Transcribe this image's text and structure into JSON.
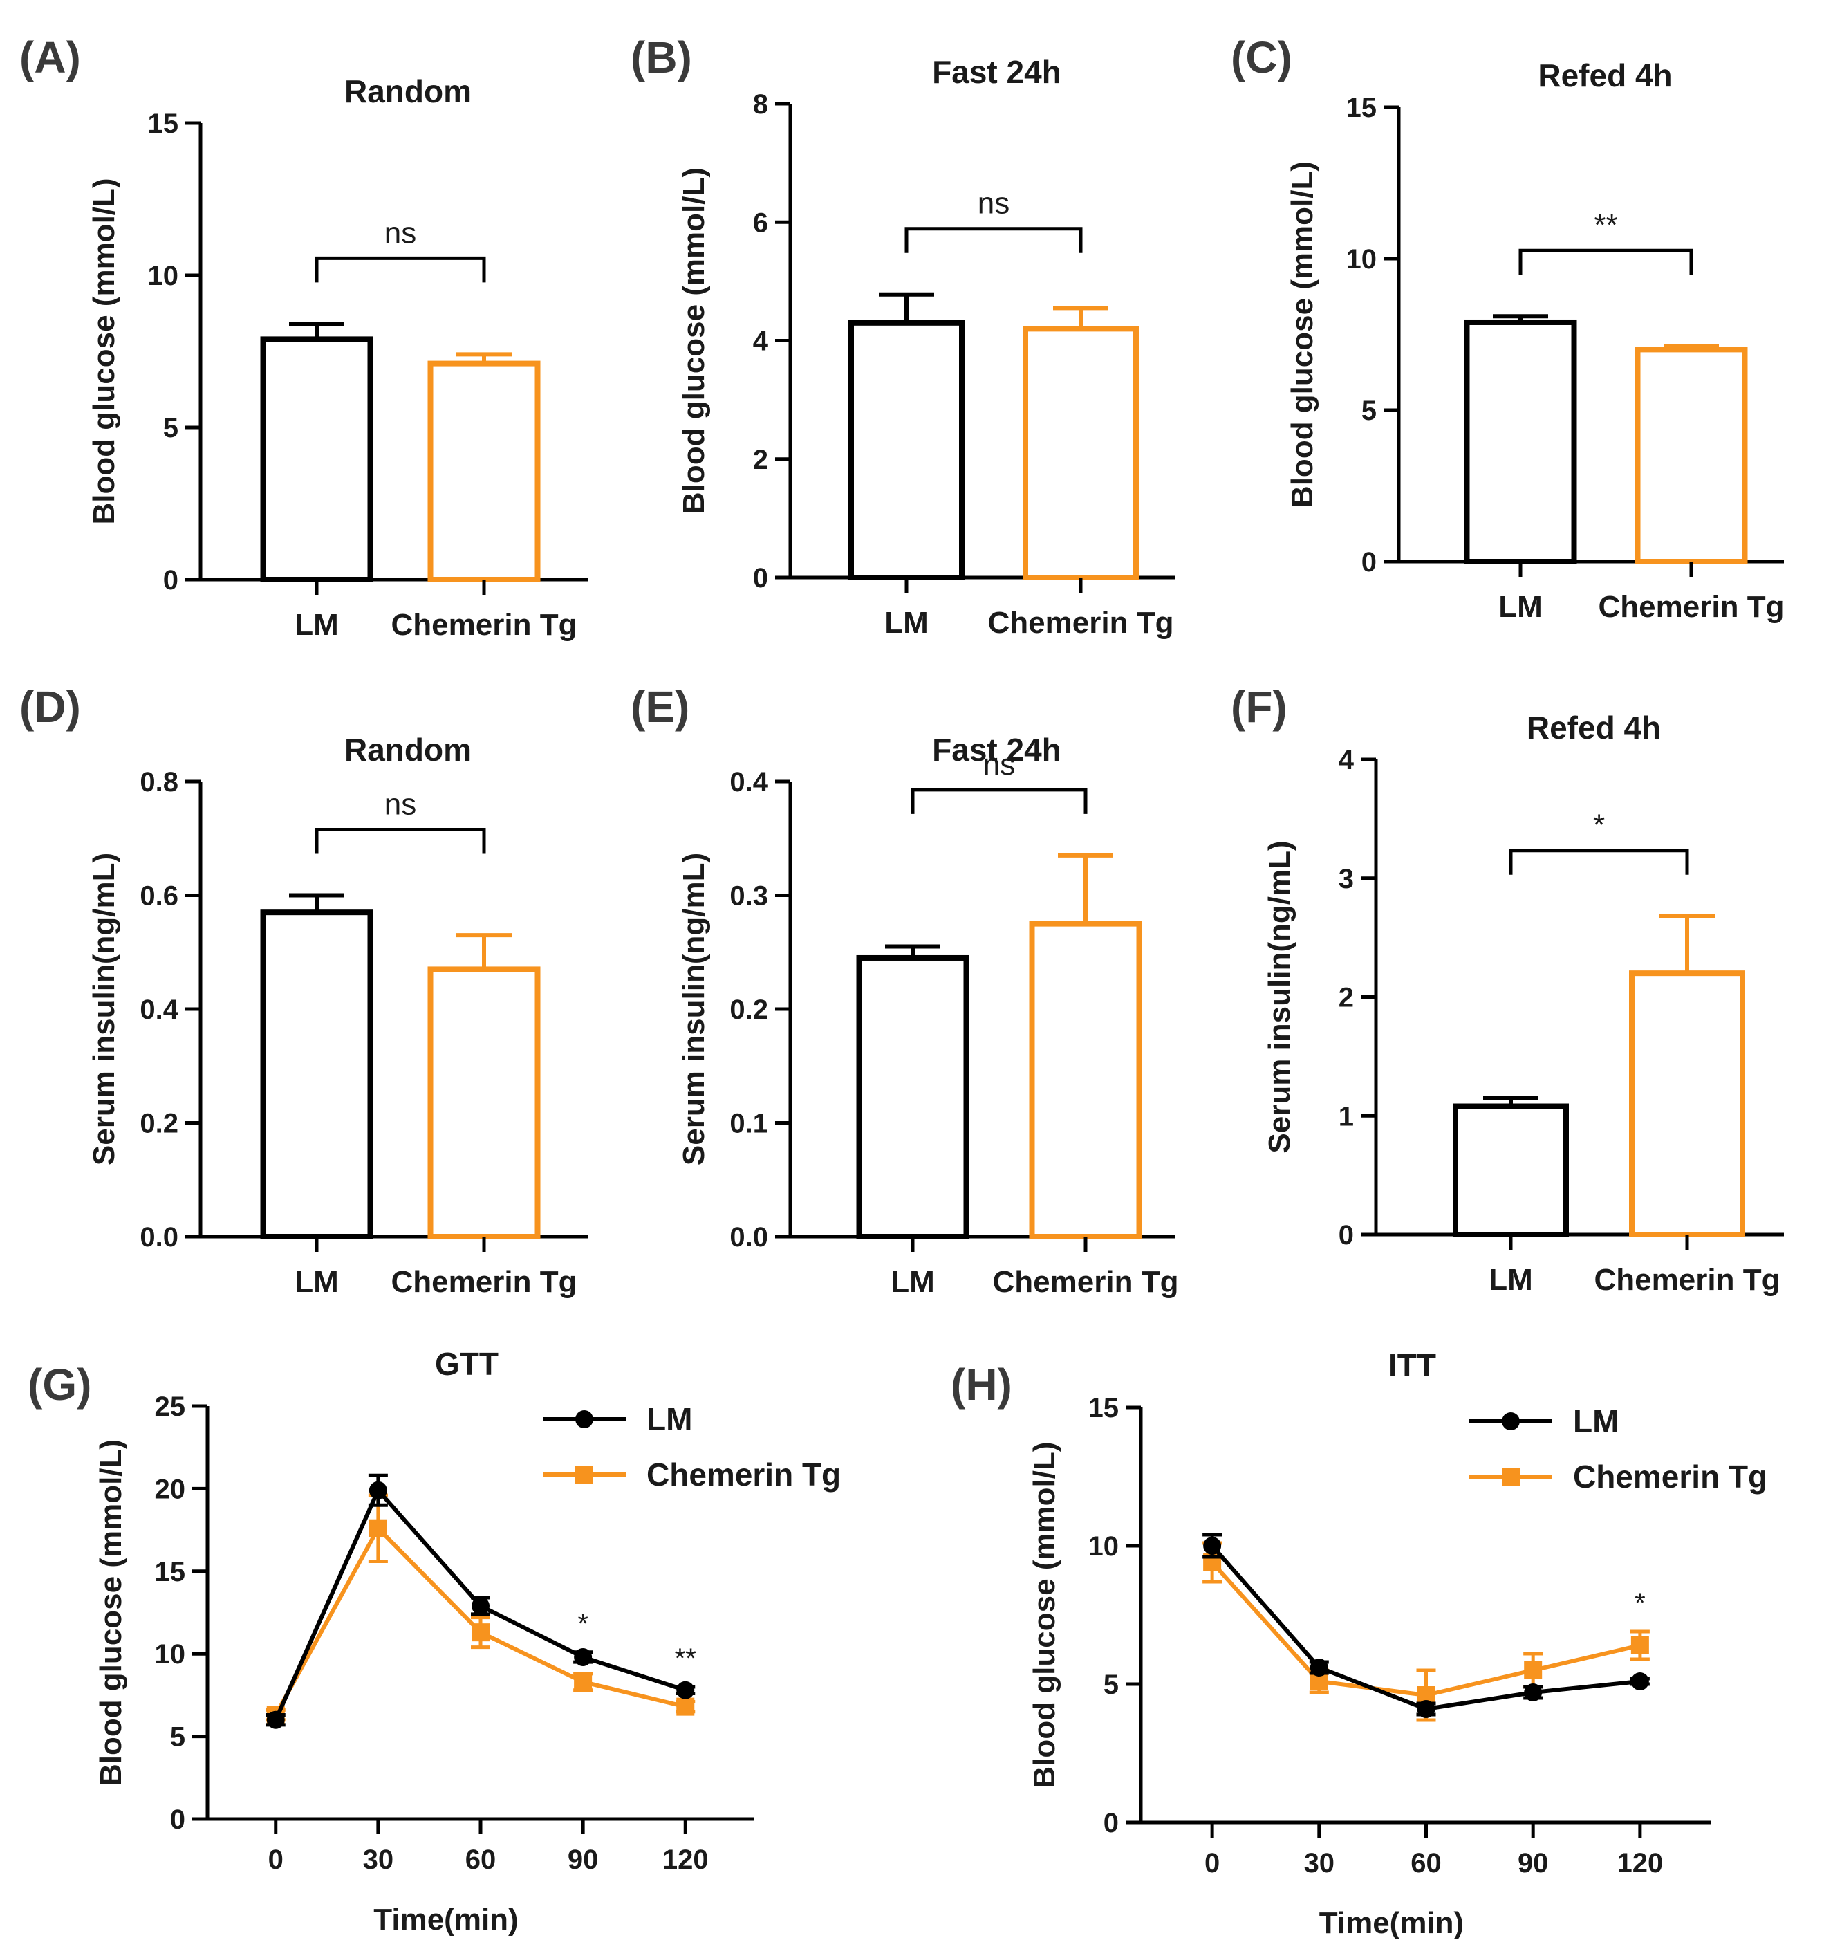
{
  "panel_letters": [
    "(A)",
    "(B)",
    "(C)",
    "(D)",
    "(E)",
    "(F)",
    "(G)",
    "(H)"
  ],
  "colors": {
    "lm": "#000000",
    "tg": "#f7931e",
    "text": "#1a1a1a"
  },
  "chart_data": [
    {
      "id": "A",
      "type": "bar",
      "title": "Random",
      "ylabel": "Blood glucose (mmol/L)",
      "ylim": [
        0,
        15
      ],
      "yticks": [
        0,
        5,
        10,
        15
      ],
      "ytick_labels": [
        "0",
        "5",
        "10",
        "15"
      ],
      "categories": [
        "LM",
        "Chemerin Tg"
      ],
      "values": [
        7.9,
        7.1
      ],
      "errors": [
        0.5,
        0.3
      ],
      "significance": "ns"
    },
    {
      "id": "B",
      "type": "bar",
      "title": "Fast 24h",
      "ylabel": "Blood glucose (mmol/L)",
      "ylim": [
        0,
        8
      ],
      "yticks": [
        0,
        2,
        4,
        6,
        8
      ],
      "ytick_labels": [
        "0",
        "2",
        "4",
        "6",
        "8"
      ],
      "categories": [
        "LM",
        "Chemerin Tg"
      ],
      "values": [
        4.3,
        4.2
      ],
      "errors": [
        0.48,
        0.35
      ],
      "significance": "ns"
    },
    {
      "id": "C",
      "type": "bar",
      "title": "Refed 4h",
      "ylabel": "Blood glucose (mmol/L)",
      "ylim": [
        0,
        15
      ],
      "yticks": [
        0,
        5,
        10,
        15
      ],
      "ytick_labels": [
        "0",
        "5",
        "10",
        "15"
      ],
      "categories": [
        "LM",
        "Chemerin Tg"
      ],
      "values": [
        7.9,
        7.0
      ],
      "errors": [
        0.2,
        0.12
      ],
      "significance": "**"
    },
    {
      "id": "D",
      "type": "bar",
      "title": "Random",
      "ylabel": "Serum insulin(ng/mL)",
      "ylim": [
        0,
        0.8
      ],
      "yticks": [
        0,
        0.2,
        0.4,
        0.6,
        0.8
      ],
      "ytick_labels": [
        "0.0",
        "0.2",
        "0.4",
        "0.6",
        "0.8"
      ],
      "categories": [
        "LM",
        "Chemerin Tg"
      ],
      "values": [
        0.57,
        0.47
      ],
      "errors": [
        0.03,
        0.06
      ],
      "significance": "ns"
    },
    {
      "id": "E",
      "type": "bar",
      "title": "Fast 24h",
      "ylabel": "Serum insulin(ng/mL)",
      "ylim": [
        0,
        0.4
      ],
      "yticks": [
        0,
        0.1,
        0.2,
        0.3,
        0.4
      ],
      "ytick_labels": [
        "0.0",
        "0.1",
        "0.2",
        "0.3",
        "0.4"
      ],
      "categories": [
        "LM",
        "Chemerin Tg"
      ],
      "values": [
        0.245,
        0.275
      ],
      "errors": [
        0.01,
        0.06
      ],
      "significance": "ns"
    },
    {
      "id": "F",
      "type": "bar",
      "title": "Refed 4h",
      "ylabel": "Serum insulin(ng/mL)",
      "ylim": [
        0,
        4
      ],
      "yticks": [
        0,
        1,
        2,
        3,
        4
      ],
      "ytick_labels": [
        "0",
        "1",
        "2",
        "3",
        "4"
      ],
      "categories": [
        "LM",
        "Chemerin Tg"
      ],
      "values": [
        1.08,
        2.2
      ],
      "errors": [
        0.07,
        0.48
      ],
      "significance": "*"
    },
    {
      "id": "G",
      "type": "line",
      "title": "GTT",
      "xlabel": "Time(min)",
      "ylabel": "Blood glucose (mmol/L)",
      "x": [
        0,
        30,
        60,
        90,
        120
      ],
      "xlim": [
        -20,
        140
      ],
      "xticks": [
        0,
        30,
        60,
        90,
        120
      ],
      "xtick_labels": [
        "0",
        "30",
        "60",
        "90",
        "120"
      ],
      "ylim": [
        0,
        25
      ],
      "yticks": [
        0,
        5,
        10,
        15,
        20,
        25
      ],
      "ytick_labels": [
        "0",
        "5",
        "10",
        "15",
        "20",
        "25"
      ],
      "series": [
        {
          "name": "LM",
          "values": [
            6.0,
            19.9,
            12.9,
            9.8,
            7.8
          ],
          "errors": [
            0.3,
            0.9,
            0.5,
            0.3,
            0.2
          ]
        },
        {
          "name": "Chemerin Tg",
          "values": [
            6.3,
            17.6,
            11.3,
            8.3,
            6.8
          ],
          "errors": [
            0.3,
            2.0,
            0.9,
            0.5,
            0.3
          ]
        }
      ],
      "annotations": [
        {
          "x": 90,
          "text": "*"
        },
        {
          "x": 120,
          "text": "**"
        }
      ]
    },
    {
      "id": "H",
      "type": "line",
      "title": "ITT",
      "xlabel": "Time(min)",
      "ylabel": "Blood glucose (mmol/L)",
      "x": [
        0,
        30,
        60,
        90,
        120
      ],
      "xlim": [
        -20,
        140
      ],
      "xticks": [
        0,
        30,
        60,
        90,
        120
      ],
      "xtick_labels": [
        "0",
        "30",
        "60",
        "90",
        "120"
      ],
      "ylim": [
        0,
        15
      ],
      "yticks": [
        0,
        5,
        10,
        15
      ],
      "ytick_labels": [
        "0",
        "5",
        "10",
        "15"
      ],
      "series": [
        {
          "name": "LM",
          "values": [
            10.0,
            5.6,
            4.1,
            4.7,
            5.1
          ],
          "errors": [
            0.4,
            0.2,
            0.2,
            0.2,
            0.1
          ]
        },
        {
          "name": "Chemerin Tg",
          "values": [
            9.4,
            5.1,
            4.6,
            5.5,
            6.4
          ],
          "errors": [
            0.7,
            0.4,
            0.9,
            0.6,
            0.5
          ]
        }
      ],
      "annotations": [
        {
          "x": 120,
          "text": "*"
        }
      ]
    }
  ]
}
